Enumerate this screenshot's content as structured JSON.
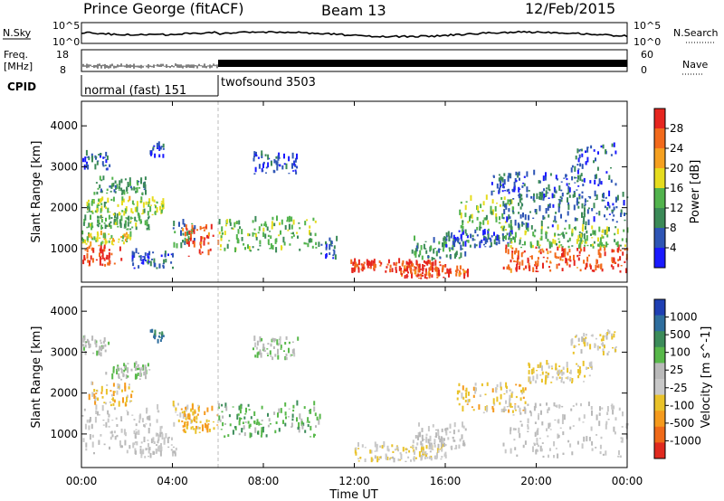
{
  "header": {
    "station": "Prince George (fitACF)",
    "beam": "Beam 13",
    "date": "12/Feb/2015"
  },
  "noise_panel": {
    "left_label": "N.Sky",
    "right_label": "N.Search",
    "left_top": "10^5",
    "left_bottom": "10^0",
    "right_top": "10^5",
    "right_bottom": "10^0"
  },
  "freq_panel": {
    "label_line1": "Freq.",
    "label_line2": "[MHz]",
    "left_top": "18",
    "left_bottom": "8",
    "right_label": "Nave",
    "right_top": "60",
    "right_bottom": "0"
  },
  "cpid_panel": {
    "label": "CPID",
    "modes": [
      {
        "name": "normal (fast) 151",
        "start": "00:00",
        "end": "06:00"
      },
      {
        "name": "twofsound 3503",
        "start": "06:00",
        "end": "24:00"
      }
    ]
  },
  "power_panel": {
    "ylabel": "Slant Range [km]",
    "colorbar_label": "Power [dB]",
    "colorbar_ticks": [
      "4",
      "8",
      "12",
      "16",
      "20",
      "24",
      "28"
    ],
    "colors": [
      "#1a1aff",
      "#2e55b5",
      "#3b8a57",
      "#52b34d",
      "#e6dc1e",
      "#f5a020",
      "#f26a1c",
      "#e6261f"
    ]
  },
  "velocity_panel": {
    "ylabel": "Slant Range [km]",
    "colorbar_label": "Velocity [m s^-1]",
    "colorbar_ticks": [
      "1000",
      "500",
      "100",
      "25",
      "-25",
      "-100",
      "-500",
      "-1000"
    ],
    "colors": [
      "#1f3fb3",
      "#2e6e9e",
      "#3c8c5a",
      "#58b84a",
      "#b9b9b9",
      "#c8c8c8",
      "#e9c22a",
      "#f59a1d",
      "#ef6a19",
      "#e02a1f"
    ]
  },
  "x_axis": {
    "label": "Time UT",
    "ticks": [
      "00:00",
      "04:00",
      "08:00",
      "12:00",
      "16:00",
      "20:00",
      "00:00"
    ]
  },
  "chart_data": [
    {
      "type": "heatmap",
      "title": "Power [dB]",
      "xlabel": "Time UT",
      "ylabel": "Slant Range [km]",
      "xlim": [
        0,
        24
      ],
      "ylim": [
        180,
        4600
      ],
      "yticks": [
        1000,
        2000,
        3000,
        4000
      ],
      "color_range": [
        0,
        30
      ],
      "blobs": [
        {
          "t0": 0.0,
          "t1": 1.8,
          "r0": 550,
          "r1": 1000,
          "v": 27
        },
        {
          "t0": 0.0,
          "t1": 2.2,
          "r0": 1050,
          "r1": 1350,
          "v": 17
        },
        {
          "t0": 0.0,
          "t1": 3.0,
          "r0": 1450,
          "r1": 1750,
          "v": 12
        },
        {
          "t0": 0.2,
          "t1": 3.6,
          "r0": 1800,
          "r1": 2200,
          "v": 15
        },
        {
          "t0": 0.5,
          "t1": 2.8,
          "r0": 2300,
          "r1": 2700,
          "v": 10
        },
        {
          "t0": 0.0,
          "t1": 1.2,
          "r0": 2900,
          "r1": 3300,
          "v": 6
        },
        {
          "t0": 3.0,
          "t1": 3.6,
          "r0": 3200,
          "r1": 3500,
          "v": 5
        },
        {
          "t0": 2.2,
          "t1": 4.0,
          "r0": 500,
          "r1": 900,
          "v": 6
        },
        {
          "t0": 4.0,
          "t1": 5.0,
          "r0": 1000,
          "r1": 1600,
          "v": 9
        },
        {
          "t0": 4.4,
          "t1": 6.0,
          "r0": 800,
          "r1": 1500,
          "v": 26
        },
        {
          "t0": 6.0,
          "t1": 10.5,
          "r0": 900,
          "r1": 1700,
          "v": 13
        },
        {
          "t0": 10.5,
          "t1": 11.2,
          "r0": 700,
          "r1": 1200,
          "v": 5
        },
        {
          "t0": 7.5,
          "t1": 9.5,
          "r0": 2800,
          "r1": 3300,
          "v": 5
        },
        {
          "t0": 11.8,
          "t1": 16.0,
          "r0": 400,
          "r1": 650,
          "v": 27
        },
        {
          "t0": 14.0,
          "t1": 17.0,
          "r0": 250,
          "r1": 500,
          "v": 26
        },
        {
          "t0": 14.5,
          "t1": 17.0,
          "r0": 700,
          "r1": 1200,
          "v": 10
        },
        {
          "t0": 16.0,
          "t1": 19.0,
          "r0": 1000,
          "r1": 1400,
          "v": 6
        },
        {
          "t0": 16.5,
          "t1": 19.0,
          "r0": 1400,
          "r1": 2200,
          "v": 14
        },
        {
          "t0": 18.0,
          "t1": 22.0,
          "r0": 2200,
          "r1": 2800,
          "v": 6
        },
        {
          "t0": 18.5,
          "t1": 24.0,
          "r0": 400,
          "r1": 1000,
          "v": 26
        },
        {
          "t0": 18.5,
          "t1": 24.0,
          "r0": 1000,
          "r1": 1500,
          "v": 13
        },
        {
          "t0": 18.5,
          "t1": 24.0,
          "r0": 1500,
          "r1": 2300,
          "v": 7
        },
        {
          "t0": 21.5,
          "t1": 23.5,
          "r0": 2500,
          "r1": 3500,
          "v": 5
        }
      ]
    },
    {
      "type": "heatmap",
      "title": "Velocity [m s^-1]",
      "xlabel": "Time UT",
      "ylabel": "Slant Range [km]",
      "xlim": [
        0,
        24
      ],
      "ylim": [
        180,
        4600
      ],
      "yticks": [
        1000,
        2000,
        3000,
        4000
      ],
      "color_range": [
        -1000,
        1000
      ],
      "blobs": [
        {
          "t0": 0.0,
          "t1": 3.5,
          "r0": 500,
          "r1": 1600,
          "v": 0
        },
        {
          "t0": 0.2,
          "t1": 2.2,
          "r0": 1650,
          "r1": 2200,
          "v": -300
        },
        {
          "t0": 1.0,
          "t1": 3.0,
          "r0": 2300,
          "r1": 2700,
          "v": 200
        },
        {
          "t0": 0.0,
          "t1": 1.2,
          "r0": 2850,
          "r1": 3300,
          "v": 150
        },
        {
          "t0": 3.0,
          "t1": 3.6,
          "r0": 3200,
          "r1": 3500,
          "v": 600
        },
        {
          "t0": 2.2,
          "t1": 4.2,
          "r0": 400,
          "r1": 900,
          "v": 0
        },
        {
          "t0": 4.0,
          "t1": 5.2,
          "r0": 1000,
          "r1": 1700,
          "v": -200
        },
        {
          "t0": 4.3,
          "t1": 6.0,
          "r0": 1000,
          "r1": 1600,
          "v": -400
        },
        {
          "t0": 6.0,
          "t1": 10.5,
          "r0": 900,
          "r1": 1700,
          "v": 300
        },
        {
          "t0": 7.5,
          "t1": 9.5,
          "r0": 2800,
          "r1": 3300,
          "v": 150
        },
        {
          "t0": 12.0,
          "t1": 16.0,
          "r0": 300,
          "r1": 700,
          "v": -150
        },
        {
          "t0": 14.5,
          "t1": 17.0,
          "r0": 600,
          "r1": 1200,
          "v": 0
        },
        {
          "t0": 16.5,
          "t1": 19.5,
          "r0": 1500,
          "r1": 2200,
          "v": -300
        },
        {
          "t0": 18.5,
          "t1": 24.0,
          "r0": 400,
          "r1": 1700,
          "v": 0
        },
        {
          "t0": 19.5,
          "t1": 22.5,
          "r0": 2200,
          "r1": 2700,
          "v": -200
        },
        {
          "t0": 21.5,
          "t1": 23.5,
          "r0": 2900,
          "r1": 3500,
          "v": -150
        }
      ]
    }
  ]
}
